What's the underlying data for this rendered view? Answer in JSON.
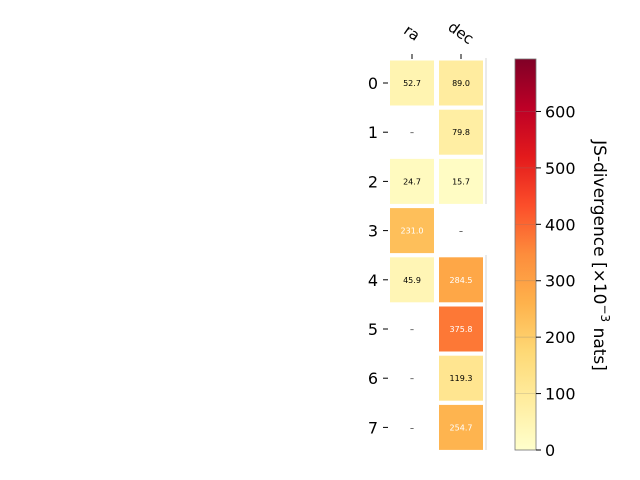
{
  "chart_data": {
    "type": "heatmap",
    "columns": [
      "ra",
      "dec"
    ],
    "rows": [
      "0",
      "1",
      "2",
      "3",
      "4",
      "5",
      "6",
      "7"
    ],
    "values": [
      [
        52.7,
        89.0
      ],
      [
        null,
        79.8
      ],
      [
        24.7,
        15.7
      ],
      [
        231.0,
        null
      ],
      [
        45.9,
        284.5
      ],
      [
        null,
        375.8
      ],
      [
        null,
        119.3
      ],
      [
        null,
        254.7
      ]
    ],
    "cell_labels": [
      [
        "52.7",
        "89.0"
      ],
      [
        "–",
        "79.8"
      ],
      [
        "24.7",
        "15.7"
      ],
      [
        "231.0",
        "–"
      ],
      [
        "45.9",
        "284.5"
      ],
      [
        "–",
        "375.8"
      ],
      [
        "–",
        "119.3"
      ],
      [
        "–",
        "254.7"
      ]
    ],
    "colorbar": {
      "label": "JS-divergence [×10⁻³ nats]",
      "label_main": "JS-divergence [×10",
      "label_exp": "−3",
      "label_unit": " nats]",
      "min": 0,
      "max": 693,
      "ticks": [
        0,
        100,
        200,
        300,
        400,
        500,
        600
      ],
      "tick_labels": [
        "0",
        "100",
        "200",
        "300",
        "400",
        "500",
        "600"
      ]
    },
    "colormap": "YlOrRd",
    "colormap_stops": [
      "#ffffcc",
      "#ffeda0",
      "#fed976",
      "#feb24c",
      "#fd8d3c",
      "#fc4e2a",
      "#e31a1c",
      "#bd0026",
      "#800026"
    ]
  }
}
